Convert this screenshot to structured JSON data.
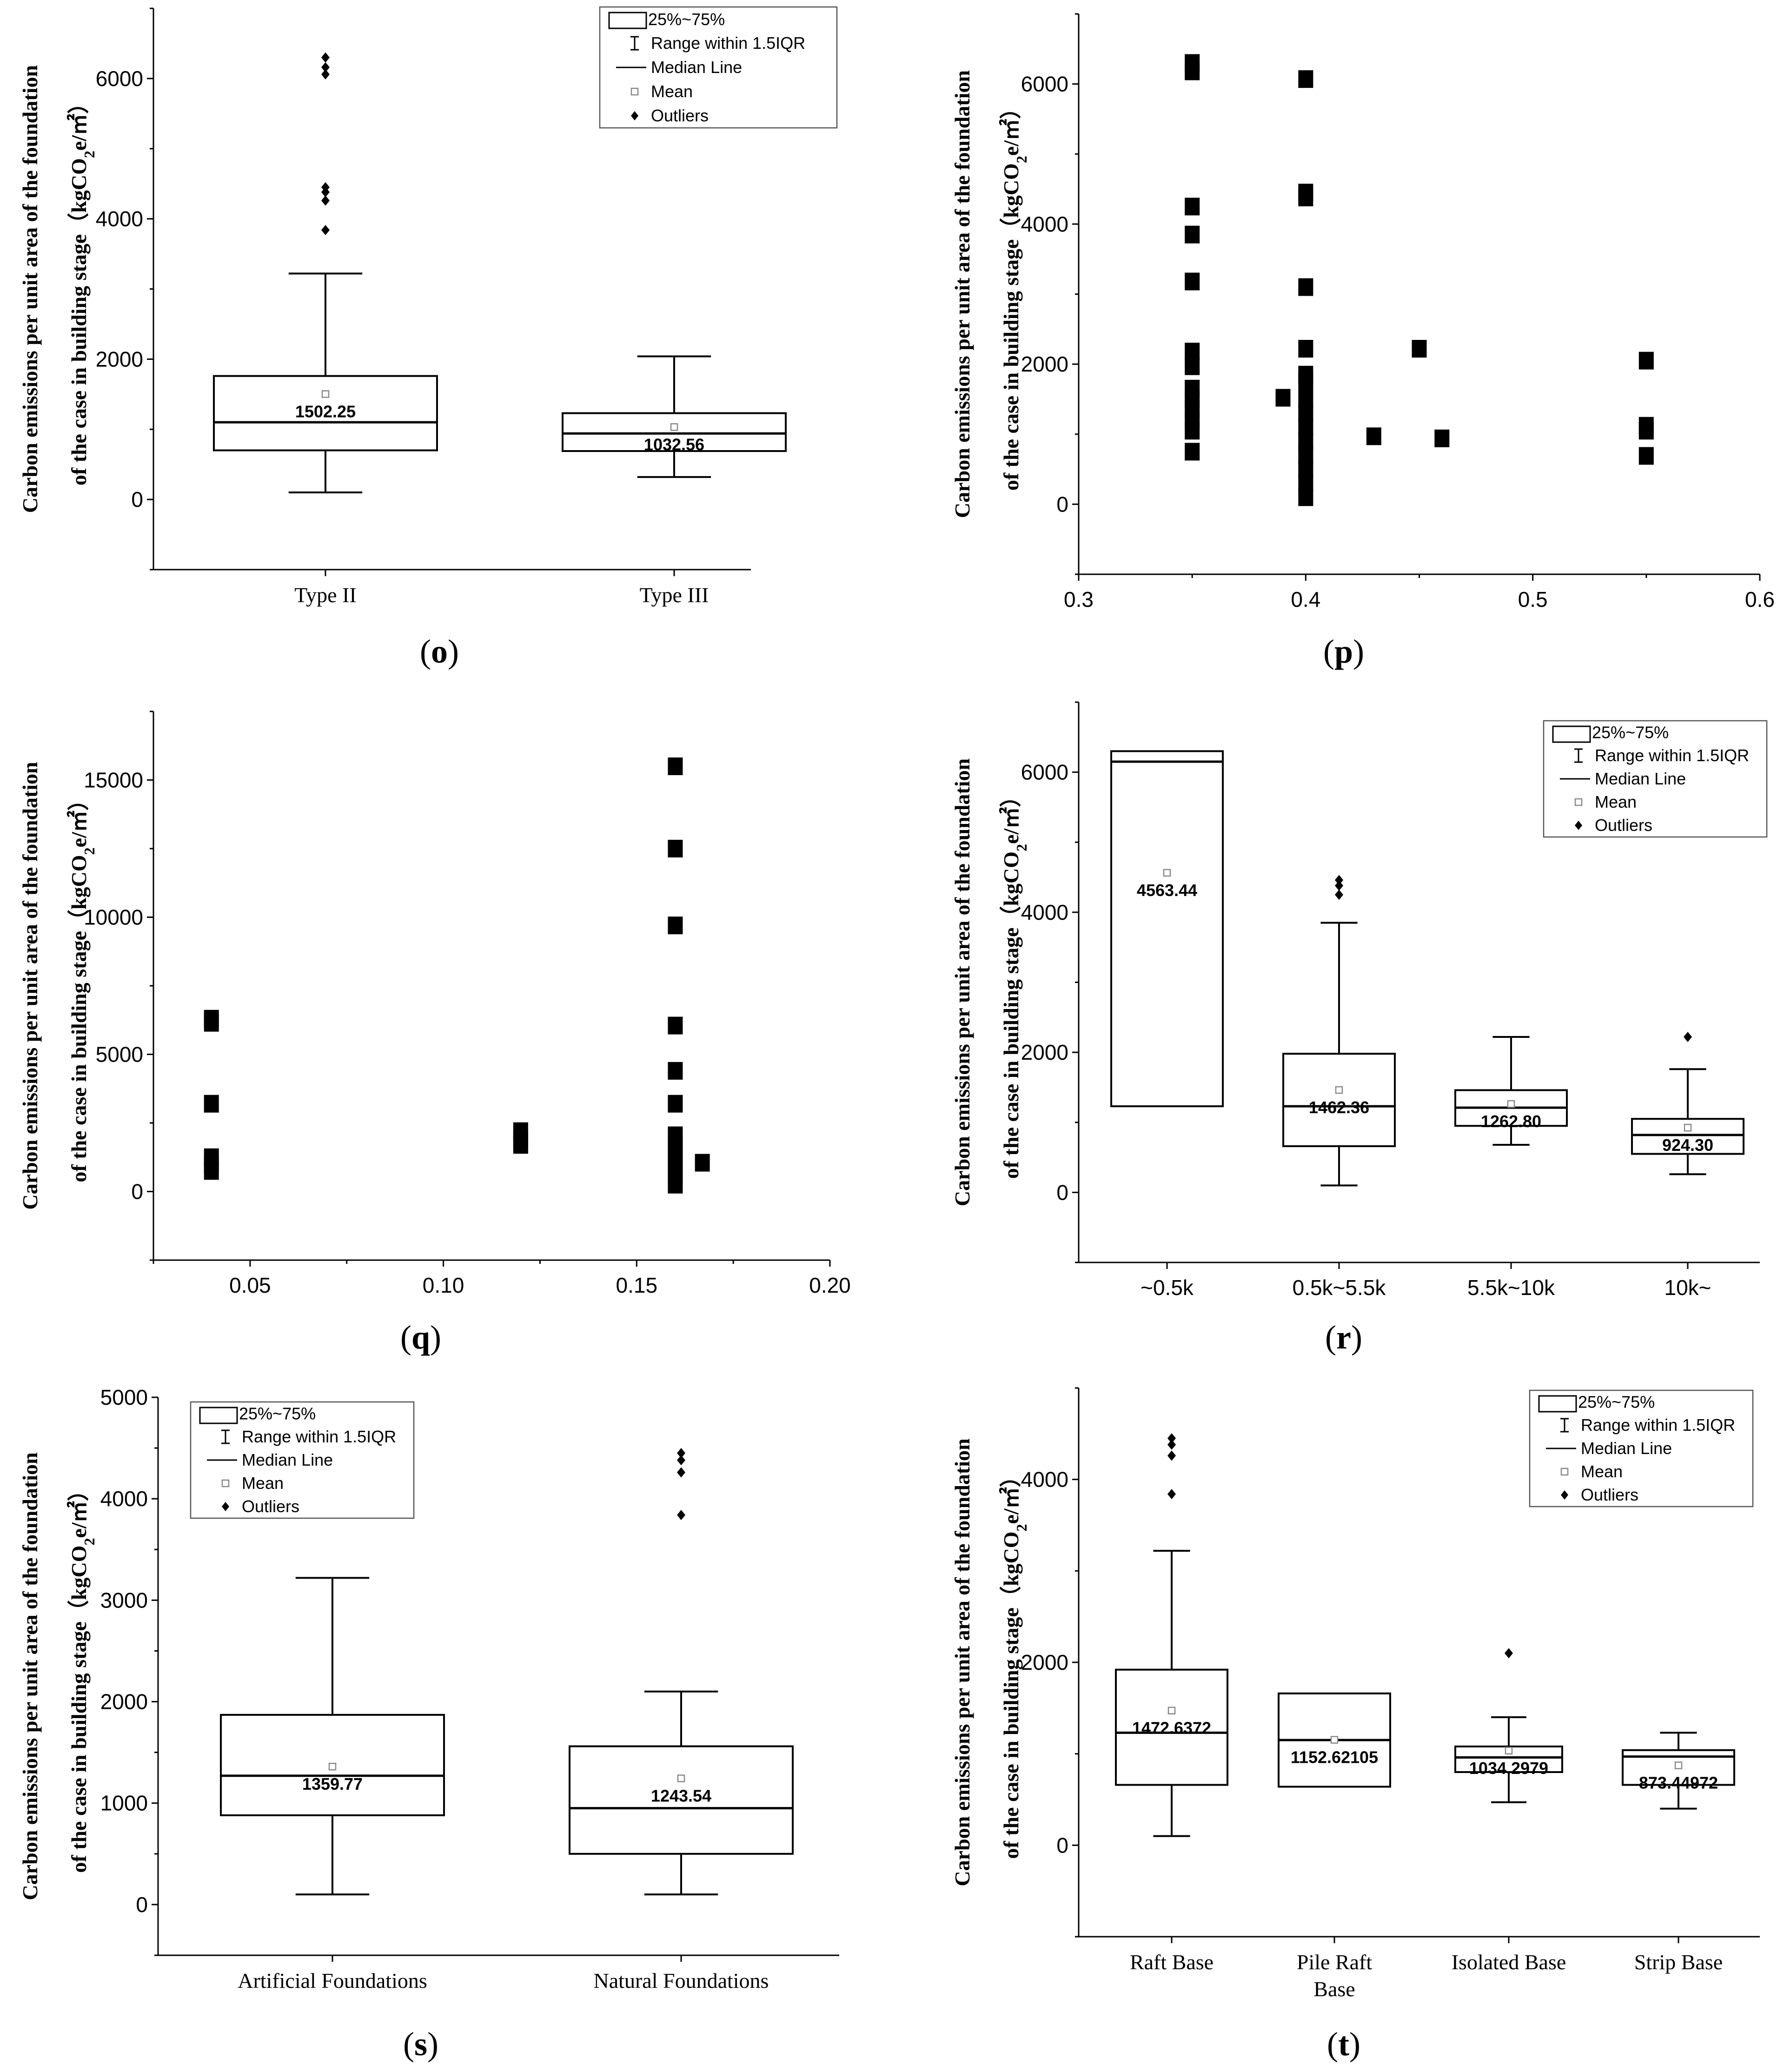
{
  "legend": {
    "box": "25%~75%",
    "range": "Range within 1.5IQR",
    "median": "Median Line",
    "mean": "Mean",
    "outliers": "Outliers"
  },
  "ylabel_line1": "Carbon emissions per unit area of the foundation",
  "ylabel_line2": "of the case in building stage（kgCO",
  "ylabel_sub": "2",
  "ylabel_tail": "e/㎡）",
  "chart_data": [
    {
      "id": "o",
      "label_prefix": "(",
      "label": "o",
      "label_suffix": ")",
      "type": "box",
      "ylim": [
        -1000,
        7000
      ],
      "yticks": [
        "0",
        "2000",
        "4000",
        "6000"
      ],
      "categories": [
        "Type II",
        "Type III"
      ],
      "boxes": [
        {
          "q1": 700,
          "median": 1100,
          "q3": 1760,
          "whisker_low": 100,
          "whisker_high": 3220,
          "mean": 1502.25,
          "mean_label": "1502.25",
          "outliers": [
            3840,
            4260,
            4380,
            4450,
            6060,
            6160,
            6300
          ]
        },
        {
          "q1": 690,
          "median": 940,
          "q3": 1230,
          "whisker_low": 320,
          "whisker_high": 2040,
          "mean": 1032.56,
          "mean_label": "1032.56",
          "outliers": []
        }
      ]
    },
    {
      "id": "p",
      "label_prefix": "(",
      "label": "p",
      "label_suffix": ")",
      "type": "scatter",
      "xlim": [
        0.3,
        0.6
      ],
      "xticks": [
        "0.3",
        "0.4",
        "0.5",
        "0.6"
      ],
      "ylim": [
        -1000,
        7000
      ],
      "yticks": [
        "0",
        "2000",
        "4000",
        "6000"
      ],
      "points": [
        [
          0.35,
          6300
        ],
        [
          0.35,
          6180
        ],
        [
          0.35,
          4250
        ],
        [
          0.35,
          3850
        ],
        [
          0.35,
          3180
        ],
        [
          0.35,
          2180
        ],
        [
          0.35,
          1970
        ],
        [
          0.35,
          1650
        ],
        [
          0.35,
          1500
        ],
        [
          0.35,
          1350
        ],
        [
          0.35,
          1200
        ],
        [
          0.35,
          1050
        ],
        [
          0.35,
          750
        ],
        [
          0.4,
          6070
        ],
        [
          0.4,
          4450
        ],
        [
          0.4,
          4380
        ],
        [
          0.4,
          3100
        ],
        [
          0.4,
          2220
        ],
        [
          0.4,
          1850
        ],
        [
          0.4,
          1750
        ],
        [
          0.4,
          1500
        ],
        [
          0.4,
          1300
        ],
        [
          0.4,
          1100
        ],
        [
          0.4,
          900
        ],
        [
          0.4,
          700
        ],
        [
          0.4,
          500
        ],
        [
          0.4,
          300
        ],
        [
          0.4,
          100
        ],
        [
          0.39,
          1520
        ],
        [
          0.43,
          970
        ],
        [
          0.45,
          2220
        ],
        [
          0.46,
          940
        ],
        [
          0.55,
          2050
        ],
        [
          0.55,
          1120
        ],
        [
          0.55,
          1050
        ],
        [
          0.55,
          690
        ]
      ]
    },
    {
      "id": "q",
      "label_prefix": "(",
      "label": "q",
      "label_suffix": ")",
      "type": "scatter",
      "xlim": [
        0.025,
        0.2
      ],
      "xticks": [
        "0.05",
        "0.10",
        "0.15",
        "0.20"
      ],
      "ylim": [
        -2500,
        17500
      ],
      "yticks": [
        "0",
        "5000",
        "10000",
        "15000"
      ],
      "points": [
        [
          0.04,
          6300
        ],
        [
          0.04,
          6150
        ],
        [
          0.04,
          3200
        ],
        [
          0.04,
          1250
        ],
        [
          0.04,
          1000
        ],
        [
          0.04,
          750
        ],
        [
          0.12,
          2200
        ],
        [
          0.12,
          1900
        ],
        [
          0.12,
          1700
        ],
        [
          0.16,
          15500
        ],
        [
          0.16,
          12500
        ],
        [
          0.16,
          9700
        ],
        [
          0.16,
          6050
        ],
        [
          0.16,
          4400
        ],
        [
          0.16,
          3200
        ],
        [
          0.16,
          2050
        ],
        [
          0.16,
          1750
        ],
        [
          0.16,
          1450
        ],
        [
          0.16,
          1150
        ],
        [
          0.16,
          850
        ],
        [
          0.16,
          550
        ],
        [
          0.16,
          250
        ],
        [
          0.167,
          1050
        ]
      ]
    },
    {
      "id": "r",
      "label_prefix": "(",
      "label": "r",
      "label_suffix": ")",
      "type": "box",
      "ylim": [
        -1000,
        7000
      ],
      "yticks": [
        "0",
        "2000",
        "4000",
        "6000"
      ],
      "categories": [
        "~0.5k",
        "0.5k~5.5k",
        "5.5k~10k",
        "10k~"
      ],
      "boxes": [
        {
          "q1": 1230,
          "median": 6150,
          "q3": 6300,
          "whisker_low": 1230,
          "whisker_high": 6300,
          "mean": 4563.44,
          "mean_label": "4563.44",
          "outliers": []
        },
        {
          "q1": 660,
          "median": 1230,
          "q3": 1980,
          "whisker_low": 100,
          "whisker_high": 3850,
          "mean": 1462.36,
          "mean_label": "1462.36",
          "outliers": [
            4250,
            4380,
            4460
          ]
        },
        {
          "q1": 950,
          "median": 1210,
          "q3": 1460,
          "whisker_low": 680,
          "whisker_high": 2220,
          "mean": 1262.8,
          "mean_label": "1262.80",
          "outliers": []
        },
        {
          "q1": 550,
          "median": 820,
          "q3": 1050,
          "whisker_low": 260,
          "whisker_high": 1760,
          "mean": 924.3,
          "mean_label": "924.30",
          "outliers": [
            2220
          ]
        }
      ]
    },
    {
      "id": "s",
      "label_prefix": "(",
      "label": "s",
      "label_suffix": ")",
      "type": "box",
      "ylim": [
        -500,
        5000
      ],
      "yticks": [
        "0",
        "1000",
        "2000",
        "3000",
        "4000",
        "5000"
      ],
      "categories": [
        "Artificial Foundations",
        "Natural Foundations"
      ],
      "boxes": [
        {
          "q1": 880,
          "median": 1270,
          "q3": 1870,
          "whisker_low": 100,
          "whisker_high": 3220,
          "mean": 1359.77,
          "mean_label": "1359.77",
          "outliers": []
        },
        {
          "q1": 500,
          "median": 950,
          "q3": 1560,
          "whisker_low": 100,
          "whisker_high": 2100,
          "mean": 1243.54,
          "mean_label": "1243.54",
          "outliers": [
            3840,
            4260,
            4380,
            4450
          ]
        }
      ]
    },
    {
      "id": "t",
      "label_prefix": "(",
      "label": "t",
      "label_suffix": ")",
      "type": "box",
      "ylim": [
        -1000,
        5000
      ],
      "yticks": [
        "0",
        "2000",
        "4000"
      ],
      "categories": [
        "Raft Base",
        "Pile Raft\nBase",
        "Isolated Base",
        "Strip Base"
      ],
      "boxes": [
        {
          "q1": 660,
          "median": 1230,
          "q3": 1920,
          "whisker_low": 100,
          "whisker_high": 3220,
          "mean": 1472.6372,
          "mean_label": "1472.6372",
          "outliers": [
            3840,
            4260,
            4380,
            4450
          ]
        },
        {
          "q1": 640,
          "median": 1150,
          "q3": 1660,
          "whisker_low": 640,
          "whisker_high": 1660,
          "mean": 1152.62105,
          "mean_label": "1152.62105",
          "outliers": []
        },
        {
          "q1": 800,
          "median": 960,
          "q3": 1080,
          "whisker_low": 470,
          "whisker_high": 1400,
          "mean": 1034.2979,
          "mean_label": "1034.2979",
          "outliers": [
            2100
          ]
        },
        {
          "q1": 660,
          "median": 970,
          "q3": 1040,
          "whisker_low": 400,
          "whisker_high": 1230,
          "mean": 873.44972,
          "mean_label": "873.44972",
          "outliers": []
        }
      ]
    }
  ]
}
